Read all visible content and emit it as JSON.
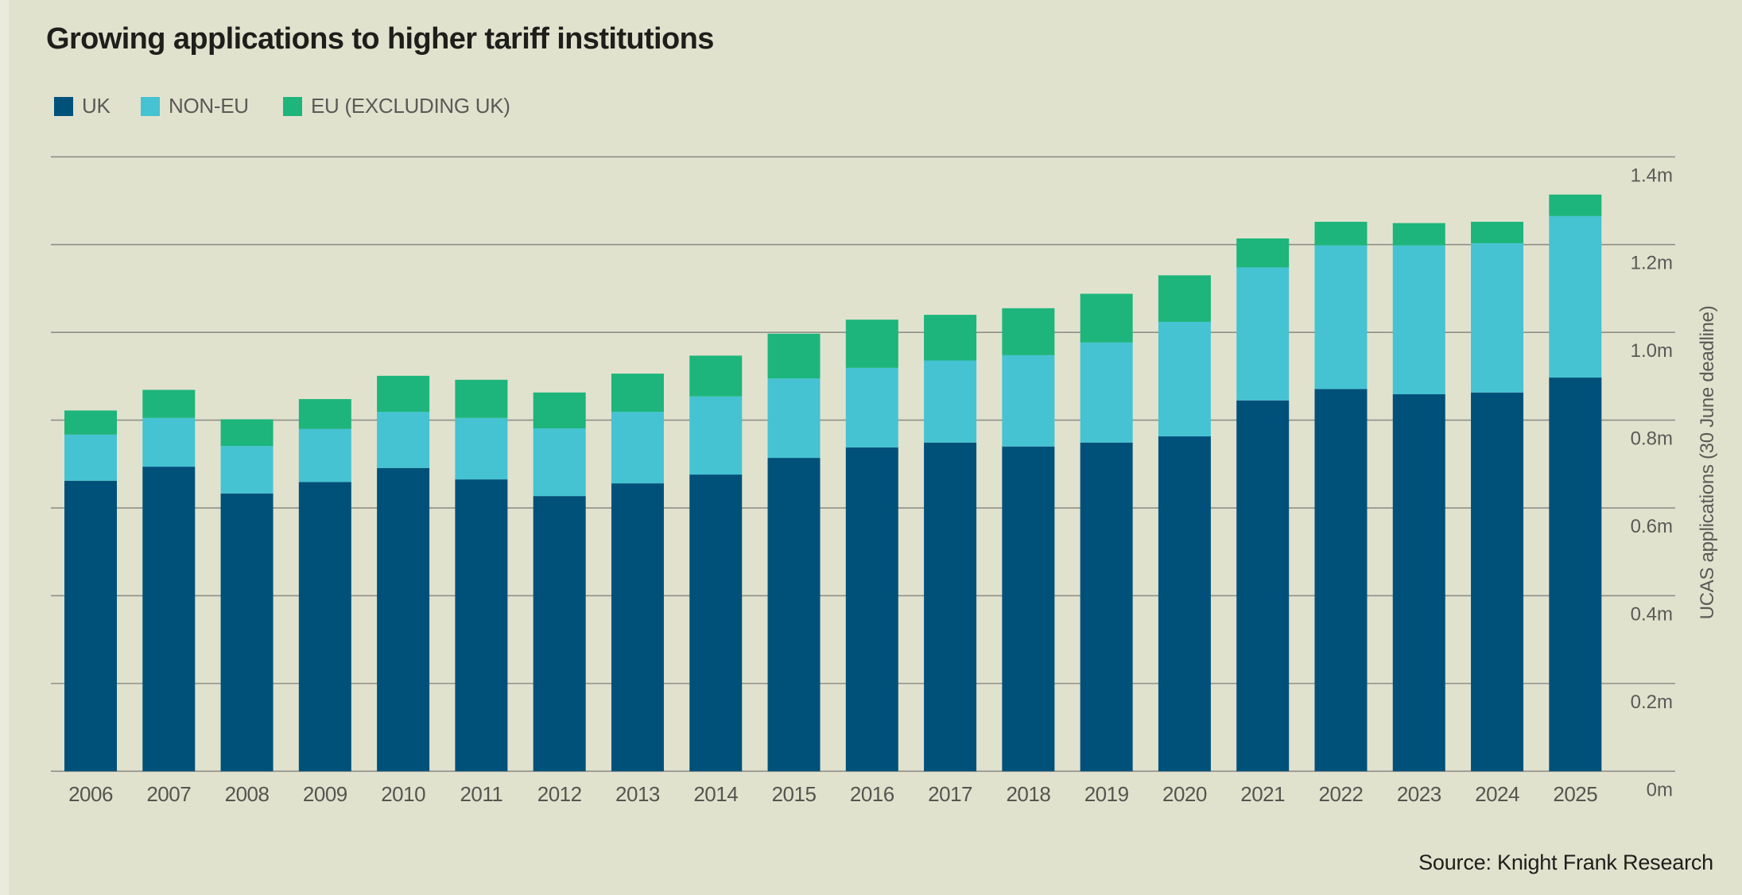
{
  "title": "Growing applications to higher tariff institutions",
  "source": "Source: Knight Frank Research",
  "legend": [
    {
      "label": "UK",
      "color": "#00517a"
    },
    {
      "label": "NON-EU",
      "color": "#45c3d2"
    },
    {
      "label": "EU (EXCLUDING UK)",
      "color": "#1db57c"
    }
  ],
  "chart_data": {
    "type": "bar",
    "stacked": true,
    "title": "Growing applications to higher tariff institutions",
    "xlabel": "",
    "ylabel": "UCAS applications (30 June deadline)",
    "ylim": [
      0,
      1.4
    ],
    "y_unit": "m",
    "yticks": [
      0,
      0.2,
      0.4,
      0.6,
      0.8,
      1.0,
      1.2,
      1.4
    ],
    "ytick_labels": [
      "0m",
      "0.2m",
      "0.4m",
      "0.6m",
      "0.8m",
      "1.0m",
      "1.2m",
      "1.4m"
    ],
    "grid": true,
    "legend_position": "top-left",
    "categories": [
      "2006",
      "2007",
      "2008",
      "2009",
      "2010",
      "2011",
      "2012",
      "2013",
      "2014",
      "2015",
      "2016",
      "2017",
      "2018",
      "2019",
      "2020",
      "2021",
      "2022",
      "2023",
      "2024",
      "2025"
    ],
    "series": [
      {
        "name": "UK",
        "color": "#00517a",
        "values": [
          0.662,
          0.694,
          0.633,
          0.659,
          0.691,
          0.665,
          0.627,
          0.656,
          0.676,
          0.714,
          0.738,
          0.749,
          0.74,
          0.749,
          0.763,
          0.845,
          0.871,
          0.859,
          0.863,
          0.897
        ]
      },
      {
        "name": "NON-EU",
        "color": "#45c3d2",
        "values": [
          0.105,
          0.111,
          0.108,
          0.121,
          0.128,
          0.14,
          0.154,
          0.163,
          0.178,
          0.181,
          0.181,
          0.187,
          0.208,
          0.228,
          0.261,
          0.303,
          0.327,
          0.339,
          0.34,
          0.368
        ]
      },
      {
        "name": "EU (EXCLUDING UK)",
        "color": "#1db57c",
        "values": [
          0.055,
          0.064,
          0.061,
          0.068,
          0.082,
          0.087,
          0.082,
          0.087,
          0.093,
          0.102,
          0.11,
          0.104,
          0.107,
          0.111,
          0.106,
          0.066,
          0.054,
          0.051,
          0.049,
          0.049
        ]
      }
    ]
  }
}
